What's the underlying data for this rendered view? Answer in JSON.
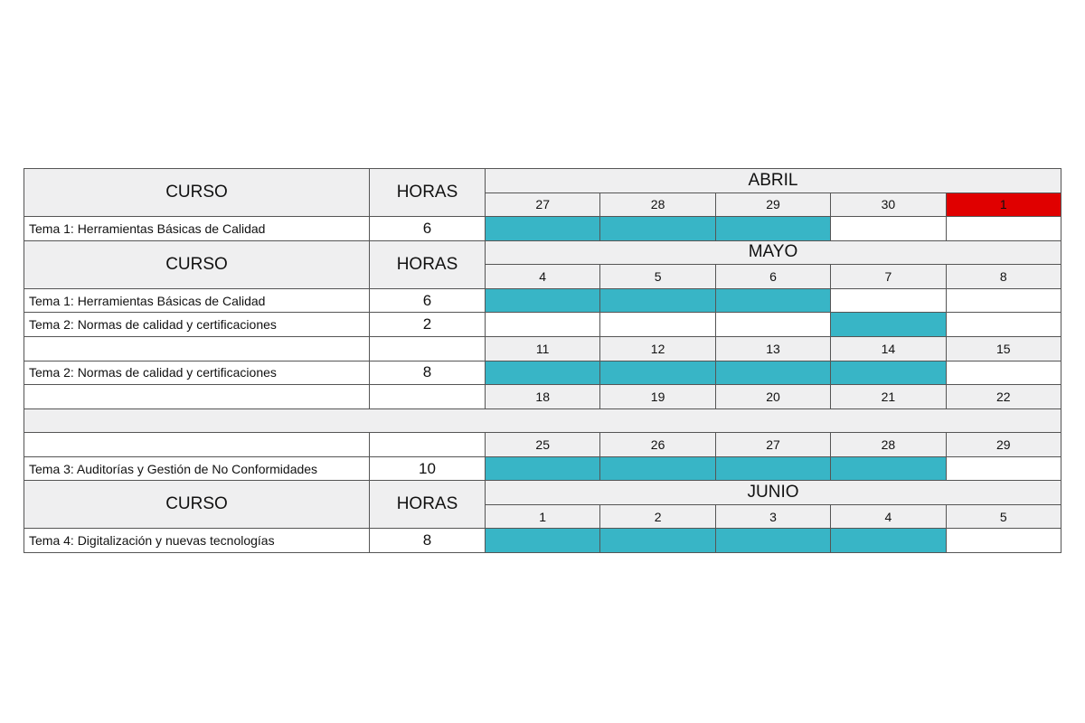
{
  "headers": {
    "course": "CURSO",
    "hours": "HORAS"
  },
  "colors": {
    "scheduled": "#38b5c6",
    "holiday": "#e00000",
    "header": "#efeff0",
    "border": "#555555"
  },
  "rows": [
    {
      "month": "ABRIL",
      "days": [
        27,
        28,
        29,
        30,
        1
      ],
      "holiday": [
        4
      ]
    },
    {
      "name": "Tema 1: Herramientas Básicas de Calidad",
      "hours": 6,
      "scheduled": [
        true,
        true,
        true,
        false,
        false
      ]
    },
    {
      "month": "MAYO",
      "days": [
        4,
        5,
        6,
        7,
        8
      ]
    },
    {
      "name": "Tema 1: Herramientas Básicas de Calidad",
      "hours": 6,
      "scheduled": [
        true,
        true,
        true,
        false,
        false
      ]
    },
    {
      "name": "Tema 2: Normas de calidad y certificaciones",
      "hours": 2,
      "scheduled": [
        false,
        false,
        false,
        true,
        false
      ]
    },
    {
      "days": [
        11,
        12,
        13,
        14,
        15
      ]
    },
    {
      "name": "Tema 2: Normas de calidad y certificaciones",
      "hours": 8,
      "scheduled": [
        true,
        true,
        true,
        true,
        false
      ]
    },
    {
      "days": [
        18,
        19,
        20,
        21,
        22
      ]
    },
    {
      "separator": true
    },
    {
      "days": [
        25,
        26,
        27,
        28,
        29
      ]
    },
    {
      "name": "Tema 3: Auditorías y Gestión de No Conformidades",
      "hours": 10,
      "scheduled": [
        true,
        true,
        true,
        true,
        false
      ]
    },
    {
      "month": "JUNIO",
      "days": [
        1,
        2,
        3,
        4,
        5
      ]
    },
    {
      "name": "Tema 4: Digitalización y nuevas tecnologías",
      "hours": 8,
      "scheduled": [
        true,
        true,
        true,
        true,
        false
      ]
    }
  ]
}
